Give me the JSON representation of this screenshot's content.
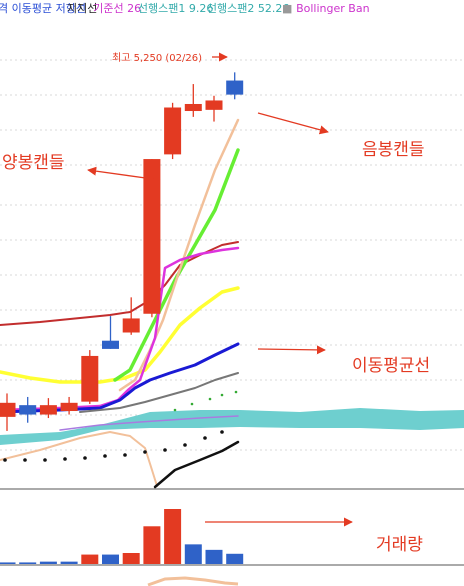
{
  "legend": {
    "items": [
      {
        "text": "격 이동평균 저항선",
        "color": "#2b4fd6"
      },
      {
        "text": "지지선",
        "color": "#222222"
      },
      {
        "text": "기준선 26",
        "color": "#cc33cc"
      },
      {
        "text": "선행스팬1 9.26",
        "color": "#33aaaa"
      },
      {
        "text": "선행스팬2 52.26",
        "color": "#33aaaa"
      },
      {
        "text": "■",
        "color": "#999999"
      },
      {
        "text": "Bollinger Ban",
        "color": "#cc33cc"
      }
    ]
  },
  "annotations": {
    "high_label": "최고 5,250 (02/26)",
    "up_candles": "양봉캔들",
    "down_candles": "음봉캔들",
    "moving_avg": "이동평균선",
    "volume": "거래량"
  },
  "colors": {
    "up": "#e33a22",
    "down": "#2f62c8",
    "annotation": "#e33a22",
    "ichimoku_cloud": "#6ecfcf",
    "ma_blue": "#1a1ad4",
    "ma_yellow": "#ffff33",
    "ma_green": "#66ee33",
    "ma_peach": "#f2c09a",
    "ma_dark_red": "#c22d2d",
    "ma_magenta": "#dd33dd",
    "ma_gray": "#777777",
    "support_black": "#111111"
  },
  "chart_data": {
    "type": "candlestick",
    "price_scale_note": "",
    "high_marker": {
      "value": 5250,
      "date": "02/26"
    },
    "candles": [
      {
        "open": 3820,
        "close": 3880,
        "high": 3920,
        "low": 3760,
        "dir": "up"
      },
      {
        "open": 3870,
        "close": 3830,
        "high": 3905,
        "low": 3795,
        "dir": "down"
      },
      {
        "open": 3830,
        "close": 3870,
        "high": 3900,
        "low": 3815,
        "dir": "up"
      },
      {
        "open": 3845,
        "close": 3880,
        "high": 3905,
        "low": 3830,
        "dir": "up"
      },
      {
        "open": 3885,
        "close": 4080,
        "high": 4105,
        "low": 3875,
        "dir": "up"
      },
      {
        "open": 4110,
        "close": 4145,
        "high": 4250,
        "low": 4110,
        "dir": "down"
      },
      {
        "open": 4180,
        "close": 4240,
        "high": 4330,
        "low": 4170,
        "dir": "up"
      },
      {
        "open": 4260,
        "close": 4920,
        "high": 4920,
        "low": 4245,
        "dir": "up"
      },
      {
        "open": 4940,
        "close": 5140,
        "high": 5160,
        "low": 4920,
        "dir": "up"
      },
      {
        "open": 5125,
        "close": 5155,
        "high": 5240,
        "low": 5100,
        "dir": "up"
      },
      {
        "open": 5130,
        "close": 5170,
        "high": 5190,
        "low": 5080,
        "dir": "up"
      },
      {
        "open": 5195,
        "close": 5255,
        "high": 5290,
        "low": 5175,
        "dir": "down"
      }
    ],
    "volume": [
      {
        "value": 2,
        "dir": "down"
      },
      {
        "value": 2,
        "dir": "down"
      },
      {
        "value": 3,
        "dir": "down"
      },
      {
        "value": 3,
        "dir": "down"
      },
      {
        "value": 12,
        "dir": "up"
      },
      {
        "value": 12,
        "dir": "down"
      },
      {
        "value": 14,
        "dir": "up"
      },
      {
        "value": 48,
        "dir": "up"
      },
      {
        "value": 70,
        "dir": "up"
      },
      {
        "value": 25,
        "dir": "down"
      },
      {
        "value": 18,
        "dir": "down"
      },
      {
        "value": 13,
        "dir": "down"
      }
    ],
    "volume_max": 70
  }
}
